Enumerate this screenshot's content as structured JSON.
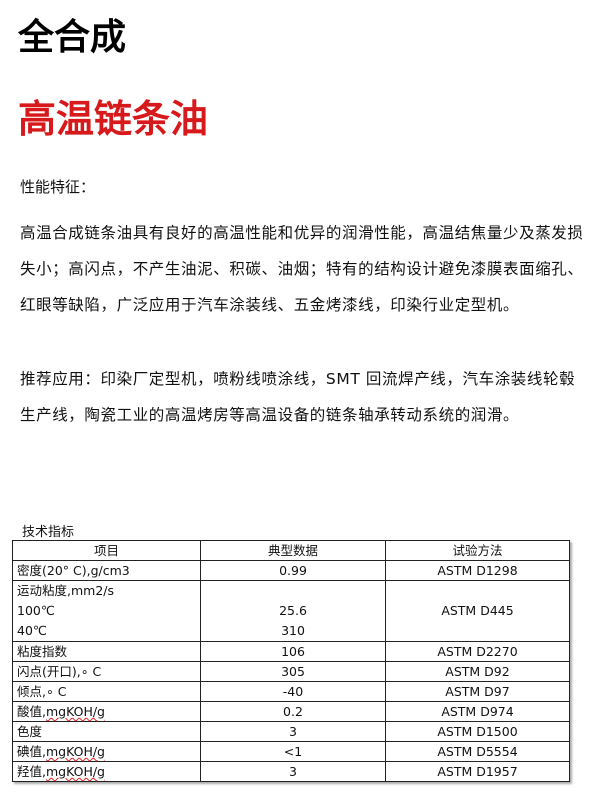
{
  "title_line1": "全合成",
  "title_line2": "高温链条油",
  "features_heading": "性能特征：",
  "features_text": "高温合成链条油具有良好的高温性能和优异的润滑性能，高温结焦量少及蒸发损失小；高闪点，不产生油泥、积碳、油烟；特有的结构设计避免漆膜表面缩孔、红眼等缺陷，广泛应用于汽车涂装线、五金烤漆线，印染行业定型机。",
  "applications_text": "推荐应用：印染厂定型机，喷粉线喷涂线，SMT 回流焊产线，汽车涂装线轮毂生产线，陶瓷工业的高温烤房等高温设备的链条轴承转动系统的润滑。",
  "table_title": "技术指标",
  "table": {
    "headers": [
      "项目",
      "典型数据",
      "试验方法"
    ],
    "rows": [
      {
        "item": "密度(20° C),g/cm3",
        "value": "0.99",
        "method": "ASTM D1298"
      },
      {
        "item": "运动粘度,mm2/s",
        "sub": [
          "100℃",
          "40℃"
        ],
        "values": [
          "25.6",
          "310"
        ],
        "method": "ASTM D445"
      },
      {
        "item": "粘度指数",
        "value": "106",
        "method": "ASTM D2270"
      },
      {
        "item": "闪点(开口),∘ C",
        "value": "305",
        "method": "ASTM D92"
      },
      {
        "item": "倾点,∘ C",
        "value": "-40",
        "method": "ASTM D97"
      },
      {
        "item_cn": "酸值,",
        "item_unit": "mgKOH/g",
        "value": "0.2",
        "method": "ASTM D974"
      },
      {
        "item": "色度",
        "value": "3",
        "method": "ASTM D1500"
      },
      {
        "item_cn": "碘值,",
        "item_unit": "mgKOH/g",
        "value": "<1",
        "method": "ASTM D5554"
      },
      {
        "item_cn": "羟值,",
        "item_unit": "mgKOH/g",
        "value": "3",
        "method": "ASTM D1957"
      }
    ]
  }
}
